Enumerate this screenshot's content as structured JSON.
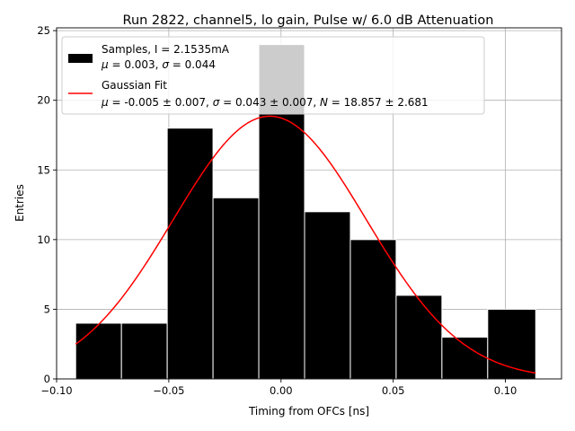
{
  "chart_data": {
    "type": "histogram",
    "title": "Run 2822, channel5, lo gain, Pulse w/ 6.0 dB Attenuation",
    "xlabel": "Timing from OFCs [ns]",
    "ylabel": "Entries",
    "xlim": [
      -0.1,
      0.125
    ],
    "ylim": [
      0,
      25.2
    ],
    "grid": true,
    "xticks": [
      -0.1,
      -0.05,
      0.0,
      0.05,
      0.1
    ],
    "xtick_labels": [
      "−0.10",
      "−0.05",
      "0.00",
      "0.05",
      "0.10"
    ],
    "yticks": [
      0,
      5,
      10,
      15,
      20,
      25
    ],
    "ytick_labels": [
      "0",
      "5",
      "10",
      "15",
      "20",
      "25"
    ],
    "bins": [
      {
        "x0": -0.0915,
        "x1": -0.0711,
        "count": 4
      },
      {
        "x0": -0.0711,
        "x1": -0.0507,
        "count": 4
      },
      {
        "x0": -0.0507,
        "x1": -0.0303,
        "count": 18
      },
      {
        "x0": -0.0303,
        "x1": -0.0099,
        "count": 13
      },
      {
        "x0": -0.0099,
        "x1": 0.0105,
        "count": 24
      },
      {
        "x0": 0.0105,
        "x1": 0.0309,
        "count": 12
      },
      {
        "x0": 0.0309,
        "x1": 0.0513,
        "count": 10
      },
      {
        "x0": 0.0513,
        "x1": 0.0717,
        "count": 6
      },
      {
        "x0": 0.0717,
        "x1": 0.0921,
        "count": 3
      },
      {
        "x0": 0.0921,
        "x1": 0.1135,
        "count": 5
      }
    ],
    "fit": {
      "type": "gaussian",
      "mu": -0.005,
      "sigma": 0.043,
      "N": 18.857,
      "x_range": [
        -0.0915,
        0.1135
      ],
      "color": "#ff0000"
    },
    "bar_color": "#000000",
    "bar_edge_color": "#ffffff",
    "legend": {
      "location": "upper-left",
      "samples_line1": "Samples, I = 2.1535mA",
      "samples_line2_mu_sym": "μ",
      "samples_line2_mu_val": " = 0.003, ",
      "samples_line2_sigma_sym": "σ",
      "samples_line2_sigma_val": " = 0.044",
      "fit_line1": "Gaussian Fit",
      "fit_line2_mu_sym": "μ",
      "fit_line2_mu_val": " = -0.005 ± 0.007, ",
      "fit_line2_sigma_sym": "σ",
      "fit_line2_sigma_val": " = 0.043 ± 0.007, ",
      "fit_line2_n_sym": "N",
      "fit_line2_n_val": " = 18.857 ± 2.681"
    }
  }
}
